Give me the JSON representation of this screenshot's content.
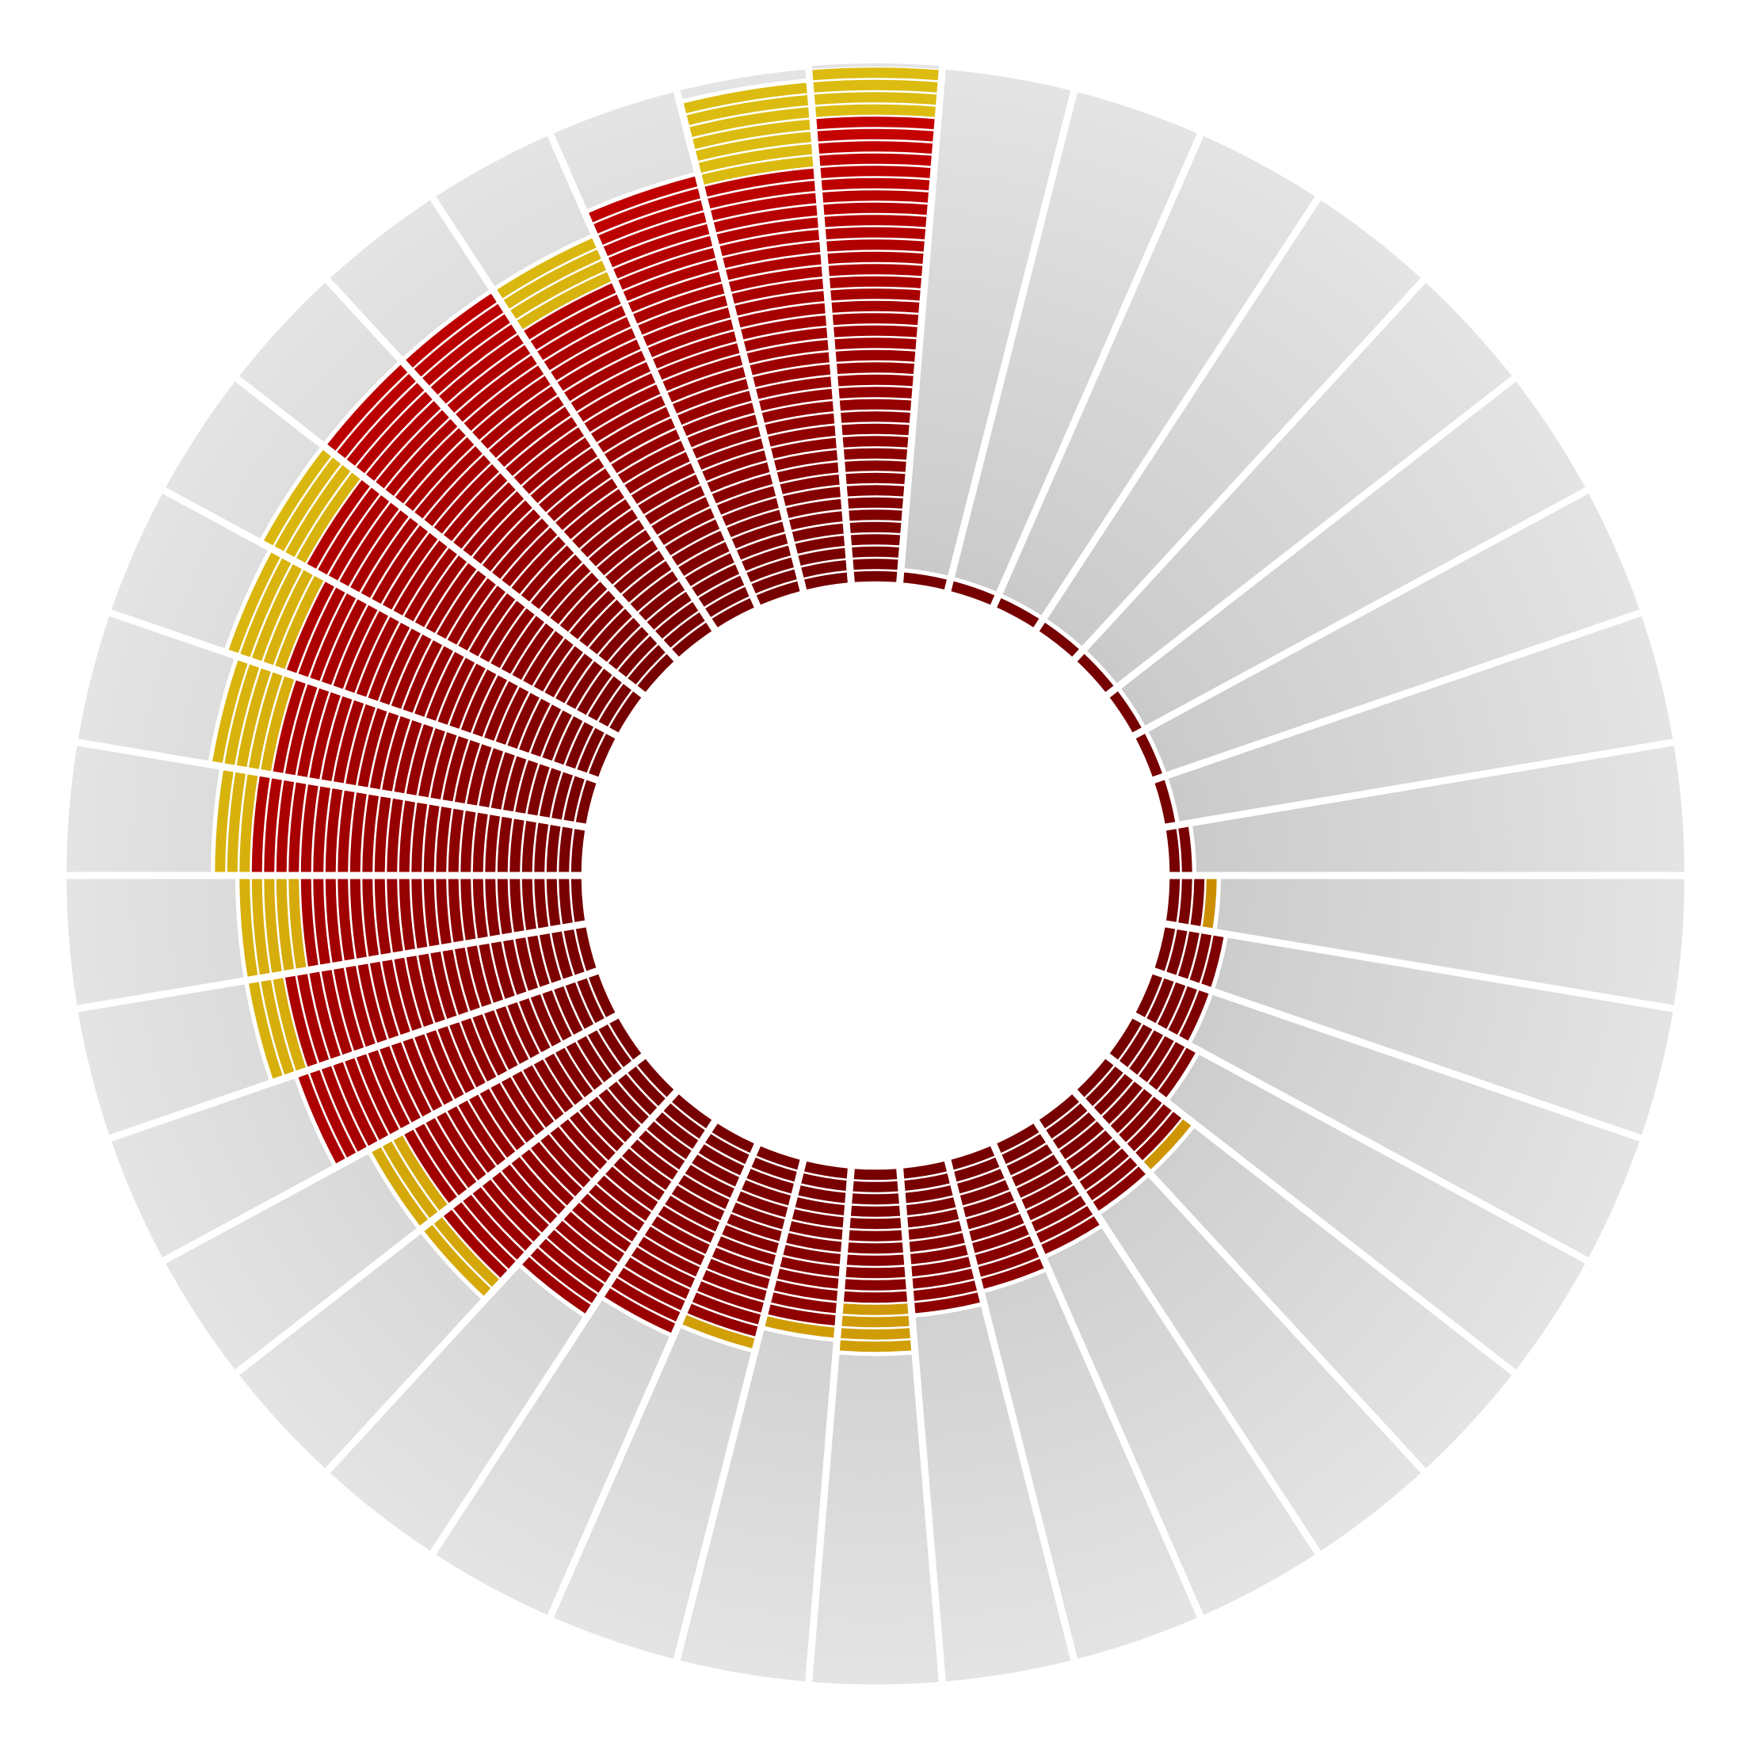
{
  "chart_data": {
    "type": "radial_stacked_bar",
    "series": [
      {
        "color": "#c40000",
        "inner_color": "#760000",
        "values": [
          38,
          1,
          1,
          1,
          1,
          1,
          1,
          1,
          1,
          2,
          3,
          5,
          5,
          6,
          8,
          9,
          10,
          11,
          12,
          11,
          13,
          15,
          17,
          19,
          21,
          20,
          26,
          25,
          23,
          27,
          26,
          27,
          29,
          33,
          33,
          29,
          35,
          34
        ]
      },
      {
        "color": "#dcbc10",
        "inner_color": "#c98a00",
        "values": [
          4,
          0,
          0,
          0,
          0,
          0,
          0,
          0,
          0,
          0,
          1,
          0,
          0,
          0,
          1,
          0,
          0,
          0,
          0,
          4,
          1,
          1,
          0,
          0,
          2,
          3,
          0,
          3,
          5,
          3,
          5,
          5,
          4,
          0,
          0,
          4,
          0,
          7
        ]
      }
    ],
    "ylim": [
      0,
      42
    ],
    "track_color": "#e4e4e4",
    "track_inner_color": "#c9c9c9"
  }
}
